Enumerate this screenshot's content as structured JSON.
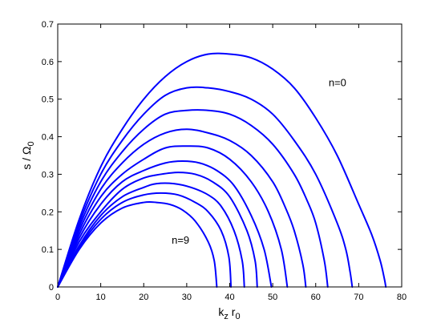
{
  "chart_data": {
    "type": "line",
    "title": "",
    "xlabel": {
      "base": "k",
      "sub1": "z",
      "mid": " r",
      "sub2": "0"
    },
    "ylabel": {
      "base": "s / Ω",
      "sub": "0"
    },
    "xlim": [
      0,
      80
    ],
    "ylim": [
      0,
      0.7
    ],
    "xticks": [
      0,
      10,
      20,
      30,
      40,
      50,
      60,
      70,
      80
    ],
    "yticks": [
      0,
      0.1,
      0.2,
      0.3,
      0.4,
      0.5,
      0.6,
      0.7
    ],
    "xtick_labels": [
      "0",
      "10",
      "20",
      "30",
      "40",
      "50",
      "60",
      "70",
      "80"
    ],
    "ytick_labels": [
      "0",
      "0.1",
      "0.2",
      "0.3",
      "0.4",
      "0.5",
      "0.6",
      "0.7"
    ],
    "grid": false,
    "line_color": "#0000ff",
    "series": [
      {
        "name": "n=0",
        "x": [
          0,
          5,
          10,
          15,
          20,
          25,
          30,
          35,
          40,
          45,
          50,
          55,
          60,
          65,
          70,
          73,
          75,
          76,
          76.3
        ],
        "y": [
          0,
          0.18,
          0.32,
          0.42,
          0.5,
          0.56,
          0.6,
          0.62,
          0.62,
          0.61,
          0.58,
          0.53,
          0.45,
          0.35,
          0.22,
          0.14,
          0.07,
          0.02,
          0
        ]
      },
      {
        "x": [
          0,
          5,
          10,
          15,
          20,
          25,
          30,
          35,
          40,
          45,
          50,
          55,
          60,
          65,
          67,
          68,
          68.5
        ],
        "y": [
          0,
          0.17,
          0.3,
          0.39,
          0.46,
          0.51,
          0.53,
          0.53,
          0.52,
          0.5,
          0.46,
          0.39,
          0.3,
          0.17,
          0.1,
          0.04,
          0
        ]
      },
      {
        "x": [
          0,
          5,
          10,
          15,
          20,
          25,
          30,
          35,
          40,
          45,
          50,
          55,
          58,
          60,
          62,
          62.8
        ],
        "y": [
          0,
          0.16,
          0.28,
          0.36,
          0.42,
          0.46,
          0.47,
          0.47,
          0.46,
          0.43,
          0.38,
          0.3,
          0.23,
          0.17,
          0.07,
          0
        ]
      },
      {
        "x": [
          0,
          5,
          10,
          15,
          20,
          25,
          30,
          35,
          40,
          45,
          50,
          53,
          55,
          57,
          57.7
        ],
        "y": [
          0,
          0.15,
          0.26,
          0.33,
          0.38,
          0.41,
          0.42,
          0.41,
          0.39,
          0.35,
          0.28,
          0.21,
          0.15,
          0.06,
          0
        ]
      },
      {
        "x": [
          0,
          5,
          10,
          15,
          20,
          25,
          30,
          35,
          40,
          45,
          49,
          52,
          53.4
        ],
        "y": [
          0,
          0.14,
          0.24,
          0.3,
          0.34,
          0.37,
          0.375,
          0.37,
          0.34,
          0.28,
          0.2,
          0.1,
          0
        ]
      },
      {
        "x": [
          0,
          5,
          10,
          15,
          20,
          25,
          29,
          33,
          37,
          41,
          45,
          48,
          49.7
        ],
        "y": [
          0,
          0.13,
          0.22,
          0.28,
          0.31,
          0.33,
          0.335,
          0.33,
          0.31,
          0.27,
          0.19,
          0.1,
          0
        ]
      },
      {
        "x": [
          0,
          5,
          10,
          15,
          20,
          24,
          28,
          32,
          36,
          40,
          44,
          45.9,
          46.4
        ],
        "y": [
          0,
          0.12,
          0.2,
          0.26,
          0.29,
          0.3,
          0.305,
          0.3,
          0.28,
          0.24,
          0.15,
          0.07,
          0
        ]
      },
      {
        "x": [
          0,
          5,
          10,
          15,
          20,
          23,
          27,
          31,
          35,
          38,
          41,
          42.9,
          43.4
        ],
        "y": [
          0,
          0.11,
          0.19,
          0.24,
          0.265,
          0.275,
          0.275,
          0.265,
          0.245,
          0.215,
          0.15,
          0.07,
          0
        ]
      },
      {
        "x": [
          0,
          5,
          10,
          15,
          20,
          24,
          28,
          32,
          35,
          38,
          39.8,
          40.3
        ],
        "y": [
          0,
          0.105,
          0.18,
          0.225,
          0.245,
          0.25,
          0.245,
          0.225,
          0.2,
          0.15,
          0.08,
          0
        ]
      },
      {
        "name": "n=9",
        "x": [
          0,
          5,
          10,
          15,
          20,
          23,
          26,
          29,
          32,
          35,
          36.4,
          37
        ],
        "y": [
          0,
          0.1,
          0.17,
          0.21,
          0.225,
          0.225,
          0.22,
          0.205,
          0.175,
          0.12,
          0.07,
          0
        ]
      }
    ],
    "annotations": [
      {
        "text": "n=0",
        "x": 63,
        "y": 0.535
      },
      {
        "text": "n=9",
        "x": 26.5,
        "y": 0.115
      }
    ]
  }
}
